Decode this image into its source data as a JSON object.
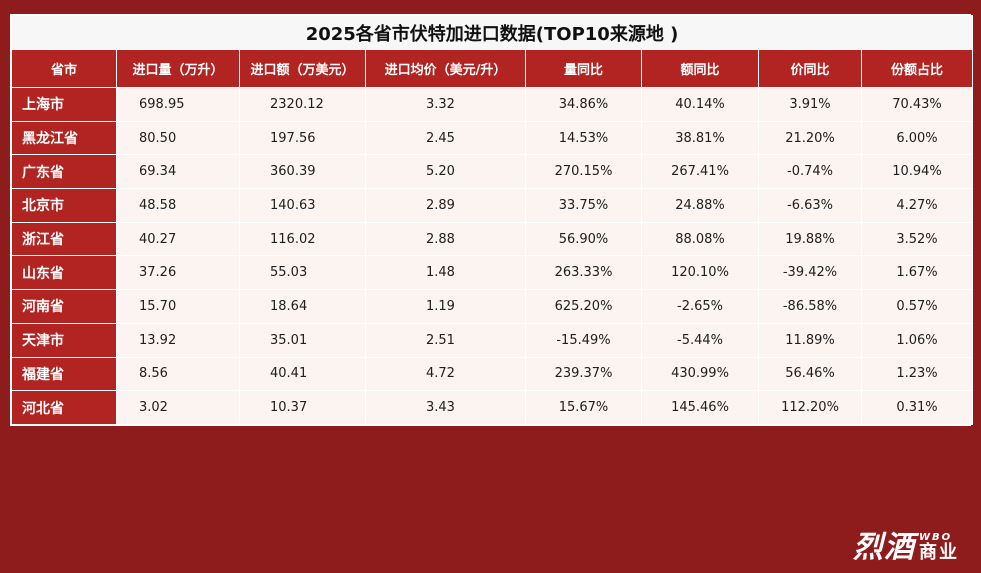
{
  "title": "2025各省市伏特加进口数据(TOP10来源地 )",
  "headers": [
    "省市",
    "进口量（万升）",
    "进口额（万美元）",
    "进口均价（美元/升）",
    "量同比",
    "额同比",
    "价同比",
    "份额占比"
  ],
  "rows": [
    {
      "province": "上海市",
      "volume": "698.95",
      "amount": "2320.12",
      "avg_price": "3.32",
      "vol_yoy": "34.86%",
      "amt_yoy": "40.14%",
      "price_yoy": "3.91%",
      "share": "70.43%"
    },
    {
      "province": "黑龙江省",
      "volume": "80.50",
      "amount": "197.56",
      "avg_price": "2.45",
      "vol_yoy": "14.53%",
      "amt_yoy": "38.81%",
      "price_yoy": "21.20%",
      "share": "6.00%"
    },
    {
      "province": "广东省",
      "volume": "69.34",
      "amount": "360.39",
      "avg_price": "5.20",
      "vol_yoy": "270.15%",
      "amt_yoy": "267.41%",
      "price_yoy": "-0.74%",
      "share": "10.94%"
    },
    {
      "province": "北京市",
      "volume": "48.58",
      "amount": "140.63",
      "avg_price": "2.89",
      "vol_yoy": "33.75%",
      "amt_yoy": "24.88%",
      "price_yoy": "-6.63%",
      "share": "4.27%"
    },
    {
      "province": "浙江省",
      "volume": "40.27",
      "amount": "116.02",
      "avg_price": "2.88",
      "vol_yoy": "56.90%",
      "amt_yoy": "88.08%",
      "price_yoy": "19.88%",
      "share": "3.52%"
    },
    {
      "province": "山东省",
      "volume": "37.26",
      "amount": "55.03",
      "avg_price": "1.48",
      "vol_yoy": "263.33%",
      "amt_yoy": "120.10%",
      "price_yoy": "-39.42%",
      "share": "1.67%"
    },
    {
      "province": "河南省",
      "volume": "15.70",
      "amount": "18.64",
      "avg_price": "1.19",
      "vol_yoy": "625.20%",
      "amt_yoy": "-2.65%",
      "price_yoy": "-86.58%",
      "share": "0.57%"
    },
    {
      "province": "天津市",
      "volume": "13.92",
      "amount": "35.01",
      "avg_price": "2.51",
      "vol_yoy": "-15.49%",
      "amt_yoy": "-5.44%",
      "price_yoy": "11.89%",
      "share": "1.06%"
    },
    {
      "province": "福建省",
      "volume": "8.56",
      "amount": "40.41",
      "avg_price": "4.72",
      "vol_yoy": "239.37%",
      "amt_yoy": "430.99%",
      "price_yoy": "56.46%",
      "share": "1.23%"
    },
    {
      "province": "河北省",
      "volume": "3.02",
      "amount": "10.37",
      "avg_price": "3.43",
      "vol_yoy": "15.67%",
      "amt_yoy": "145.46%",
      "price_yoy": "112.20%",
      "share": "0.31%"
    }
  ],
  "logo": {
    "main": "烈酒",
    "wbo": "WBO",
    "biz": "商业"
  },
  "colors": {
    "background": "#8f1c1d",
    "header": "#b22421",
    "cell": "#fbf4f1",
    "title_bg": "#f7f7f7",
    "border": "#ffffff"
  }
}
